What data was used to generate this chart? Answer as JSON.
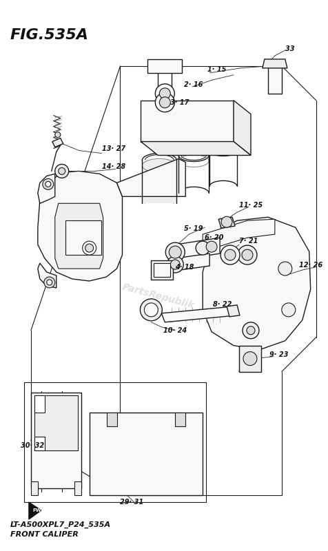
{
  "title": "FIG.535A",
  "subtitle1": "LT-A500XPL7_P24_535A",
  "subtitle2": "FRONT CALIPER",
  "bg_color": "#ffffff",
  "title_fontsize": 16,
  "subtitle_fontsize": 8,
  "watermark": "PartsRepublik",
  "watermark_color": "#bbbbbb",
  "watermark_alpha": 0.45,
  "label_fontsize": 7,
  "line_color": "#1a1a1a",
  "fill_light": "#f8f8f8",
  "fill_mid": "#eeeeee",
  "fill_dark": "#dddddd",
  "figsize": [
    4.76,
    8.0
  ],
  "dpi": 100
}
